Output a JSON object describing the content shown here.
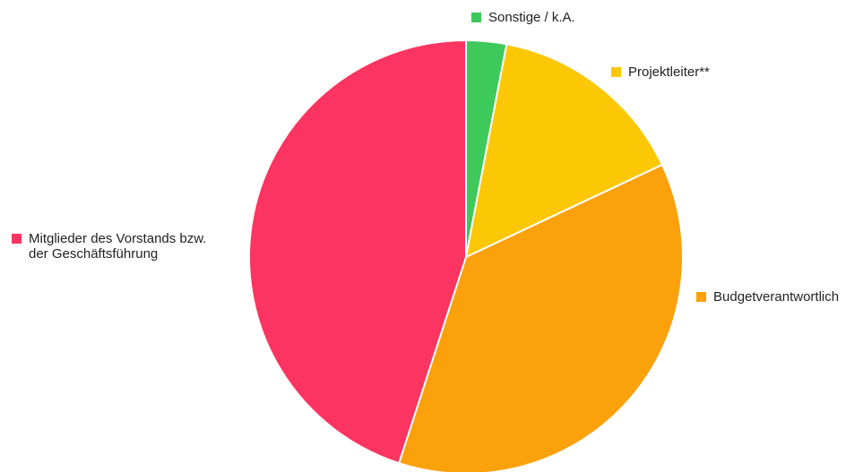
{
  "chart_data": {
    "type": "pie",
    "title": "",
    "slices": [
      {
        "label": "Sonstige / k.A.",
        "value": 3,
        "color": "#3ec95b"
      },
      {
        "label": "Projektleiter**",
        "value": 15,
        "color": "#fcc806"
      },
      {
        "label": "Budgetverantwortlich",
        "value": 37,
        "color": "#fba10c"
      },
      {
        "label": "Mitglieder des Vorstands bzw.\nder Geschäftsführung",
        "value": 45,
        "color": "#fc3461"
      }
    ],
    "legend_placement": "outside-labels",
    "start_angle": "top",
    "direction": "clockwise"
  }
}
